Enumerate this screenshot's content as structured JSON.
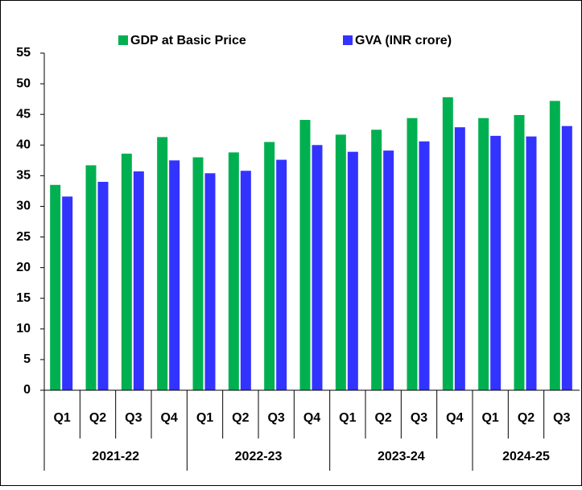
{
  "chart_data": {
    "type": "bar",
    "groups": [
      {
        "name": "2021-22",
        "categories": [
          "Q1",
          "Q2",
          "Q3",
          "Q4"
        ]
      },
      {
        "name": "2022-23",
        "categories": [
          "Q1",
          "Q2",
          "Q3",
          "Q4"
        ]
      },
      {
        "name": "2023-24",
        "categories": [
          "Q1",
          "Q2",
          "Q3",
          "Q4"
        ]
      },
      {
        "name": "2024-25",
        "categories": [
          "Q1",
          "Q2",
          "Q3"
        ]
      }
    ],
    "series": [
      {
        "name": "GDP at Basic Price",
        "color": "#00b050",
        "values": [
          33.5,
          36.7,
          38.6,
          41.3,
          38.0,
          38.8,
          40.5,
          44.1,
          41.7,
          42.5,
          44.4,
          47.8,
          44.4,
          44.9,
          47.2
        ]
      },
      {
        "name": "GVA (INR crore)",
        "color": "#3333ff",
        "values": [
          31.6,
          34.0,
          35.7,
          37.5,
          35.4,
          35.8,
          37.6,
          40.0,
          38.9,
          39.1,
          40.6,
          42.9,
          41.5,
          41.4,
          43.1
        ]
      }
    ],
    "ylim": [
      0,
      55
    ],
    "yticks": [
      0,
      5,
      10,
      15,
      20,
      25,
      30,
      35,
      40,
      45,
      50,
      55
    ],
    "grid": false,
    "legend": "top"
  }
}
